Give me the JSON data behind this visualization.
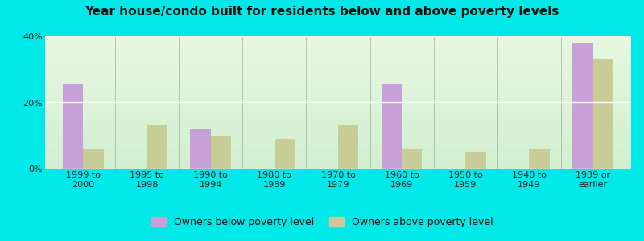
{
  "title": "Year house/condo built for residents below and above poverty levels",
  "categories": [
    "1999 to\n2000",
    "1995 to\n1998",
    "1990 to\n1994",
    "1980 to\n1989",
    "1970 to\n1979",
    "1960 to\n1969",
    "1950 to\n1959",
    "1940 to\n1949",
    "1939 or\nearlier"
  ],
  "below_poverty": [
    25.5,
    0,
    12.0,
    0,
    0,
    25.5,
    0,
    0,
    38.0
  ],
  "above_poverty": [
    6.0,
    13.0,
    10.0,
    9.0,
    13.0,
    6.0,
    5.0,
    6.0,
    33.0
  ],
  "below_color": "#c8a0d8",
  "above_color": "#c8cc96",
  "background_outer": "#00e8e8",
  "background_plot_top_left": "#e8f5e0",
  "background_plot_top_right": "#ffffff",
  "background_plot_bottom": "#d8f0d8",
  "ylim": [
    0,
    40
  ],
  "yticks": [
    0,
    20,
    40
  ],
  "ytick_labels": [
    "0%",
    "20%",
    "40%"
  ],
  "bar_width": 0.32,
  "legend_below_label": "Owners below poverty level",
  "legend_above_label": "Owners above poverty level",
  "title_fontsize": 11,
  "tick_fontsize": 8,
  "legend_fontsize": 9
}
